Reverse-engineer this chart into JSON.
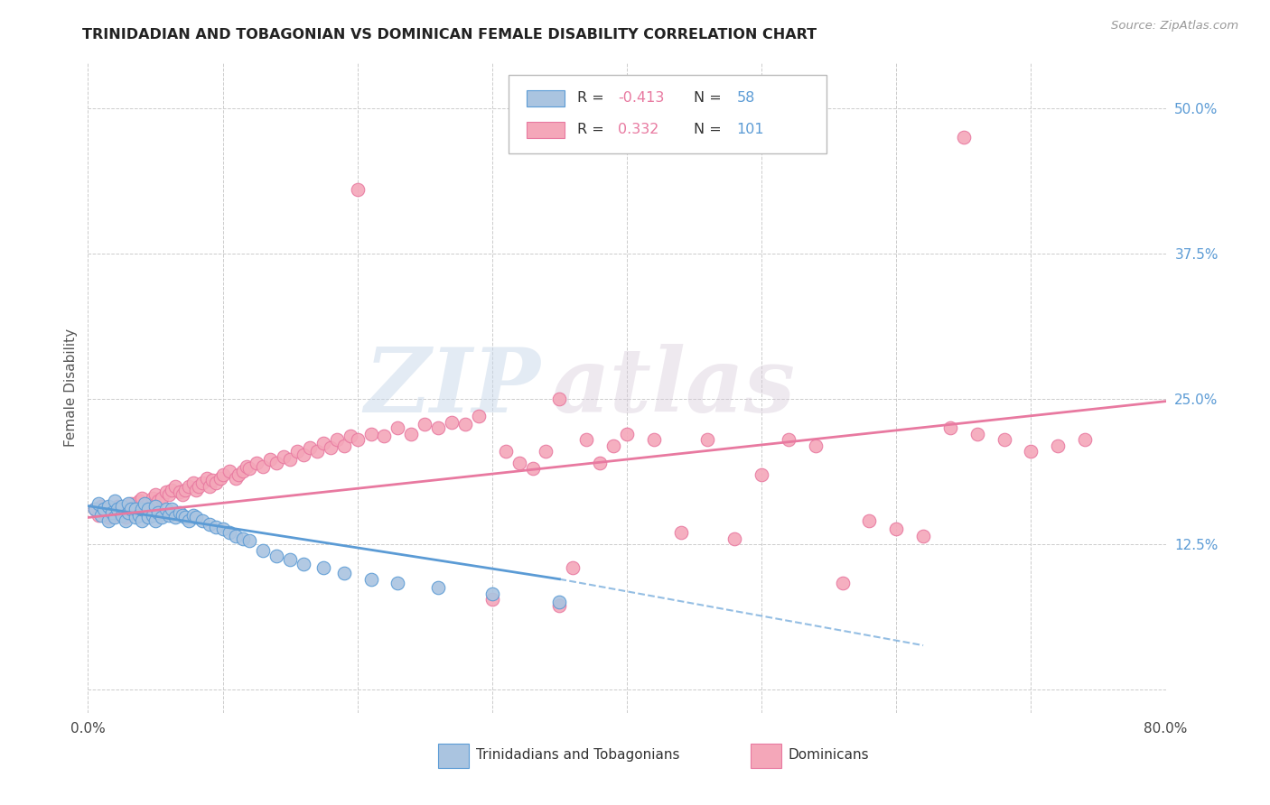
{
  "title": "TRINIDADIAN AND TOBAGONIAN VS DOMINICAN FEMALE DISABILITY CORRELATION CHART",
  "source": "Source: ZipAtlas.com",
  "ylabel": "Female Disability",
  "xlim": [
    0.0,
    0.8
  ],
  "ylim": [
    -0.02,
    0.54
  ],
  "yticks": [
    0.0,
    0.125,
    0.25,
    0.375,
    0.5
  ],
  "ytick_labels": [
    "",
    "12.5%",
    "25.0%",
    "37.5%",
    "50.0%"
  ],
  "xticks": [
    0.0,
    0.1,
    0.2,
    0.3,
    0.4,
    0.5,
    0.6,
    0.7,
    0.8
  ],
  "xtick_labels": [
    "0.0%",
    "",
    "",
    "",
    "",
    "",
    "",
    "",
    "80.0%"
  ],
  "color_tt": "#aac4e0",
  "color_dom": "#f4a7b9",
  "line_color_tt": "#5b9bd5",
  "line_color_dom": "#e879a0",
  "watermark_zip": "ZIP",
  "watermark_atlas": "atlas",
  "background_color": "#ffffff",
  "tt_scatter_x": [
    0.005,
    0.008,
    0.01,
    0.012,
    0.015,
    0.015,
    0.018,
    0.02,
    0.02,
    0.022,
    0.025,
    0.025,
    0.028,
    0.03,
    0.03,
    0.032,
    0.035,
    0.035,
    0.038,
    0.04,
    0.04,
    0.042,
    0.045,
    0.045,
    0.048,
    0.05,
    0.05,
    0.052,
    0.055,
    0.058,
    0.06,
    0.062,
    0.065,
    0.068,
    0.07,
    0.072,
    0.075,
    0.078,
    0.08,
    0.085,
    0.09,
    0.095,
    0.1,
    0.105,
    0.11,
    0.115,
    0.12,
    0.13,
    0.14,
    0.15,
    0.16,
    0.175,
    0.19,
    0.21,
    0.23,
    0.26,
    0.3,
    0.35
  ],
  "tt_scatter_y": [
    0.155,
    0.16,
    0.15,
    0.155,
    0.145,
    0.158,
    0.152,
    0.148,
    0.162,
    0.155,
    0.15,
    0.158,
    0.145,
    0.152,
    0.16,
    0.155,
    0.148,
    0.155,
    0.15,
    0.145,
    0.155,
    0.16,
    0.148,
    0.155,
    0.15,
    0.145,
    0.158,
    0.152,
    0.148,
    0.155,
    0.15,
    0.155,
    0.148,
    0.152,
    0.15,
    0.148,
    0.145,
    0.15,
    0.148,
    0.145,
    0.142,
    0.14,
    0.138,
    0.135,
    0.132,
    0.13,
    0.128,
    0.12,
    0.115,
    0.112,
    0.108,
    0.105,
    0.1,
    0.095,
    0.092,
    0.088,
    0.082,
    0.075
  ],
  "dom_scatter_x": [
    0.005,
    0.008,
    0.01,
    0.012,
    0.015,
    0.018,
    0.02,
    0.022,
    0.025,
    0.028,
    0.03,
    0.032,
    0.035,
    0.038,
    0.04,
    0.042,
    0.045,
    0.048,
    0.05,
    0.052,
    0.055,
    0.058,
    0.06,
    0.062,
    0.065,
    0.068,
    0.07,
    0.072,
    0.075,
    0.078,
    0.08,
    0.082,
    0.085,
    0.088,
    0.09,
    0.092,
    0.095,
    0.098,
    0.1,
    0.105,
    0.11,
    0.112,
    0.115,
    0.118,
    0.12,
    0.125,
    0.13,
    0.135,
    0.14,
    0.145,
    0.15,
    0.155,
    0.16,
    0.165,
    0.17,
    0.175,
    0.18,
    0.185,
    0.19,
    0.195,
    0.2,
    0.21,
    0.22,
    0.23,
    0.24,
    0.25,
    0.26,
    0.27,
    0.28,
    0.29,
    0.3,
    0.31,
    0.32,
    0.33,
    0.34,
    0.35,
    0.36,
    0.37,
    0.38,
    0.39,
    0.4,
    0.42,
    0.44,
    0.46,
    0.48,
    0.5,
    0.52,
    0.54,
    0.56,
    0.58,
    0.6,
    0.62,
    0.64,
    0.66,
    0.68,
    0.7,
    0.72,
    0.74,
    0.35,
    0.2,
    0.65
  ],
  "dom_scatter_y": [
    0.155,
    0.15,
    0.158,
    0.152,
    0.148,
    0.155,
    0.15,
    0.158,
    0.152,
    0.148,
    0.155,
    0.16,
    0.158,
    0.162,
    0.165,
    0.158,
    0.16,
    0.165,
    0.168,
    0.162,
    0.165,
    0.17,
    0.168,
    0.172,
    0.175,
    0.17,
    0.168,
    0.172,
    0.175,
    0.178,
    0.172,
    0.175,
    0.178,
    0.182,
    0.175,
    0.18,
    0.178,
    0.182,
    0.185,
    0.188,
    0.182,
    0.185,
    0.188,
    0.192,
    0.19,
    0.195,
    0.192,
    0.198,
    0.195,
    0.2,
    0.198,
    0.205,
    0.202,
    0.208,
    0.205,
    0.212,
    0.208,
    0.215,
    0.21,
    0.218,
    0.215,
    0.22,
    0.218,
    0.225,
    0.22,
    0.228,
    0.225,
    0.23,
    0.228,
    0.235,
    0.078,
    0.205,
    0.195,
    0.19,
    0.205,
    0.072,
    0.105,
    0.215,
    0.195,
    0.21,
    0.22,
    0.215,
    0.135,
    0.215,
    0.13,
    0.185,
    0.215,
    0.21,
    0.092,
    0.145,
    0.138,
    0.132,
    0.225,
    0.22,
    0.215,
    0.205,
    0.21,
    0.215,
    0.25,
    0.43,
    0.475
  ],
  "tt_line_x0": 0.0,
  "tt_line_y0": 0.158,
  "tt_line_x1": 0.35,
  "tt_line_y1": 0.095,
  "tt_line_dash_x1": 0.62,
  "tt_line_dash_y1": 0.038,
  "dom_line_x0": 0.0,
  "dom_line_y0": 0.148,
  "dom_line_x1": 0.8,
  "dom_line_y1": 0.248
}
